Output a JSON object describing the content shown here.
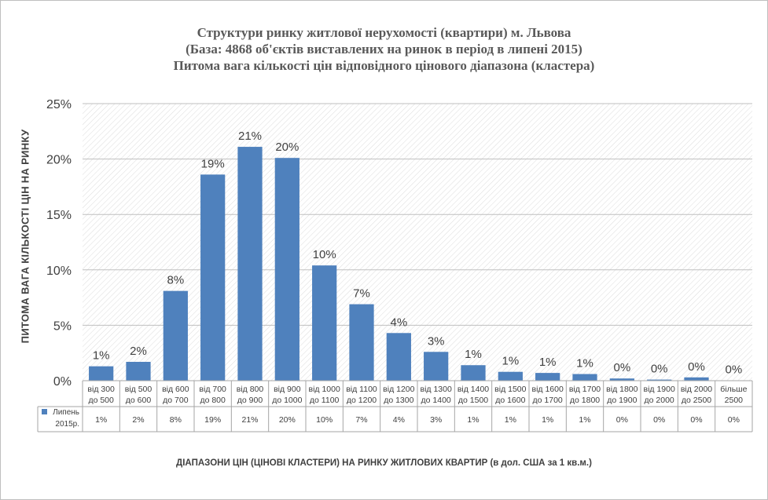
{
  "title": {
    "line1": "Структури ринку житлової нерухомості (квартири) м. Львова",
    "line2": "(База: 4868 об'єктів виставлених на ринок в період в липені 2015)",
    "line3": "Питома вага кількості цін відповідного цінового діапазона (кластера)"
  },
  "chart_data": {
    "type": "bar",
    "title": "Структури ринку житлової нерухомості (квартири) м. Львова",
    "ylabel": "ПИТОМА ВАГА КІЛЬКОСТІ ЦІН НА РИНКУ",
    "xlabel": "ДІАПАЗОНИ ЦІН (ЦІНОВІ КЛАСТЕРИ) НА РИНКУ ЖИТЛОВИХ КВАРТИР (в дол. США за 1 кв.м.)",
    "categories": [
      [
        "від 300",
        "до 500"
      ],
      [
        "від 500",
        "до 600"
      ],
      [
        "від 600",
        "до 700"
      ],
      [
        "від 700",
        "до 800"
      ],
      [
        "від 800",
        "до 900"
      ],
      [
        "від 900",
        "до 1000"
      ],
      [
        "від 1000",
        "до 1100"
      ],
      [
        "від 1100",
        "до 1200"
      ],
      [
        "від 1200",
        "до 1300"
      ],
      [
        "від 1300",
        "до 1400"
      ],
      [
        "від 1400",
        "до 1500"
      ],
      [
        "від 1500",
        "до 1600"
      ],
      [
        "від 1600",
        "до 1700"
      ],
      [
        "від 1700",
        "до 1800"
      ],
      [
        "від 1800",
        "до 1900"
      ],
      [
        "від 1900",
        "до 2000"
      ],
      [
        "від 2000",
        "до 2500"
      ],
      [
        "більше",
        "2500"
      ]
    ],
    "series": [
      {
        "name": "Липень 2015р.",
        "legend_lines": [
          "Липень",
          "2015р."
        ],
        "color": "#4f81bd",
        "values": [
          1.3,
          1.7,
          8.1,
          18.6,
          21.1,
          20.1,
          10.4,
          6.9,
          4.3,
          2.6,
          1.4,
          0.8,
          0.7,
          0.6,
          0.2,
          0.1,
          0.3,
          0.02
        ],
        "labels": [
          "1%",
          "2%",
          "8%",
          "19%",
          "21%",
          "20%",
          "10%",
          "7%",
          "4%",
          "3%",
          "1%",
          "1%",
          "1%",
          "1%",
          "0%",
          "0%",
          "0%",
          "0%"
        ]
      }
    ],
    "y_ticks": [
      "0%",
      "5%",
      "10%",
      "15%",
      "20%",
      "25%"
    ],
    "ylim": [
      0,
      25
    ],
    "grid": true,
    "legend": "data-table"
  }
}
